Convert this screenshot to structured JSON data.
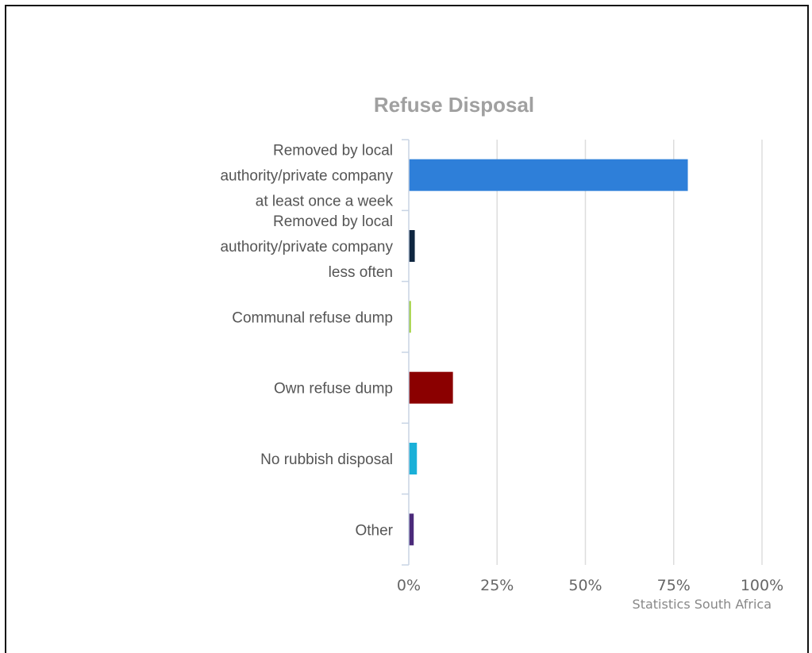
{
  "chart_data": {
    "type": "bar",
    "orientation": "horizontal",
    "title": "Refuse Disposal",
    "categories": [
      [
        "Removed by local",
        "authority/private company",
        "at least once a week"
      ],
      [
        "Removed by local",
        "authority/private company",
        "less often"
      ],
      [
        "Communal refuse dump"
      ],
      [
        "Own refuse dump"
      ],
      [
        "No rubbish disposal"
      ],
      [
        "Other"
      ]
    ],
    "values": [
      79,
      1.7,
      0.6,
      12.5,
      2.3,
      1.4
    ],
    "colors": [
      "#2e7fd9",
      "#0f2640",
      "#9acd32",
      "#8b0000",
      "#1ab0d8",
      "#4b2a7a"
    ],
    "xlim": [
      0,
      100
    ],
    "xticks": [
      0,
      25,
      50,
      75,
      100
    ],
    "xtick_labels": [
      "0%",
      "25%",
      "50%",
      "75%",
      "100%"
    ],
    "grid": true,
    "legend": false
  },
  "credits": "Statistics South Africa"
}
